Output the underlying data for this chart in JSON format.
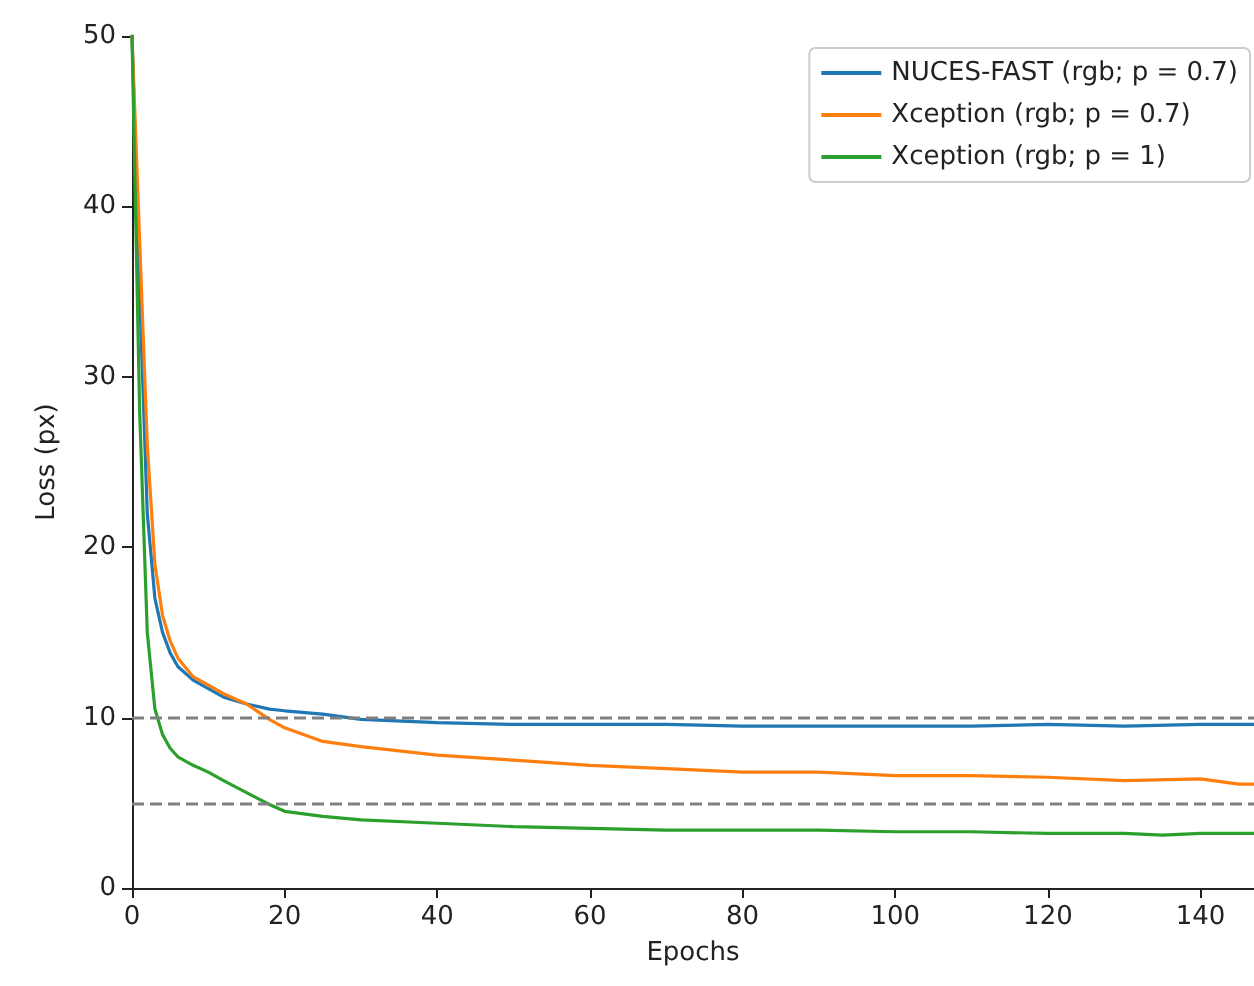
{
  "chart_data": {
    "type": "line",
    "xlabel": "Epochs",
    "ylabel": "Loss (px)",
    "xlim": [
      0,
      147
    ],
    "xticks": [
      0,
      20,
      40,
      60,
      80,
      100,
      120,
      140
    ],
    "ylim": [
      0,
      50
    ],
    "yticks": [
      0,
      10,
      20,
      30,
      40,
      50
    ],
    "grid": false,
    "legend": "top right",
    "marker": "none",
    "line_style": "solid",
    "series": [
      {
        "name": "NUCES-FAST (rgb; p = 0.7)",
        "color": "#1f77b4",
        "x": [
          0,
          1,
          2,
          3,
          4,
          5,
          6,
          8,
          10,
          12,
          15,
          18,
          20,
          25,
          30,
          40,
          50,
          60,
          70,
          80,
          90,
          100,
          110,
          120,
          130,
          140,
          147
        ],
        "values": [
          50,
          35,
          22,
          17,
          15,
          13.8,
          13,
          12.2,
          11.7,
          11.2,
          10.8,
          10.5,
          10.4,
          10.2,
          9.9,
          9.7,
          9.6,
          9.6,
          9.6,
          9.5,
          9.5,
          9.5,
          9.5,
          9.6,
          9.5,
          9.6,
          9.6
        ]
      },
      {
        "name": "Xception (rgb; p = 0.7)",
        "color": "#ff7f0e",
        "x": [
          0,
          1,
          2,
          3,
          4,
          5,
          6,
          8,
          10,
          12,
          15,
          18,
          20,
          25,
          30,
          40,
          50,
          60,
          70,
          80,
          90,
          100,
          110,
          120,
          130,
          140,
          145,
          147
        ],
        "values": [
          50,
          38,
          26,
          19,
          16,
          14.5,
          13.5,
          12.4,
          11.9,
          11.4,
          10.8,
          9.9,
          9.4,
          8.6,
          8.3,
          7.8,
          7.5,
          7.2,
          7.0,
          6.8,
          6.8,
          6.6,
          6.6,
          6.5,
          6.3,
          6.4,
          6.1,
          6.1
        ]
      },
      {
        "name": "Xception (rgb; p = 1)",
        "color": "#2ca02c",
        "x": [
          0,
          1,
          2,
          3,
          4,
          5,
          6,
          8,
          10,
          12,
          15,
          18,
          20,
          25,
          30,
          40,
          50,
          60,
          70,
          80,
          90,
          100,
          110,
          120,
          130,
          135,
          140,
          147
        ],
        "values": [
          50,
          28,
          15,
          10.5,
          9,
          8.2,
          7.7,
          7.2,
          6.8,
          6.3,
          5.6,
          4.9,
          4.5,
          4.2,
          4.0,
          3.8,
          3.6,
          3.5,
          3.4,
          3.4,
          3.4,
          3.3,
          3.3,
          3.2,
          3.2,
          3.1,
          3.2,
          3.2
        ]
      }
    ],
    "ref_lines": [
      {
        "axis": "y",
        "value": 10,
        "color": "#808080",
        "line_style": "dashed"
      },
      {
        "axis": "y",
        "value": 5,
        "color": "#808080",
        "line_style": "dashed"
      }
    ]
  }
}
